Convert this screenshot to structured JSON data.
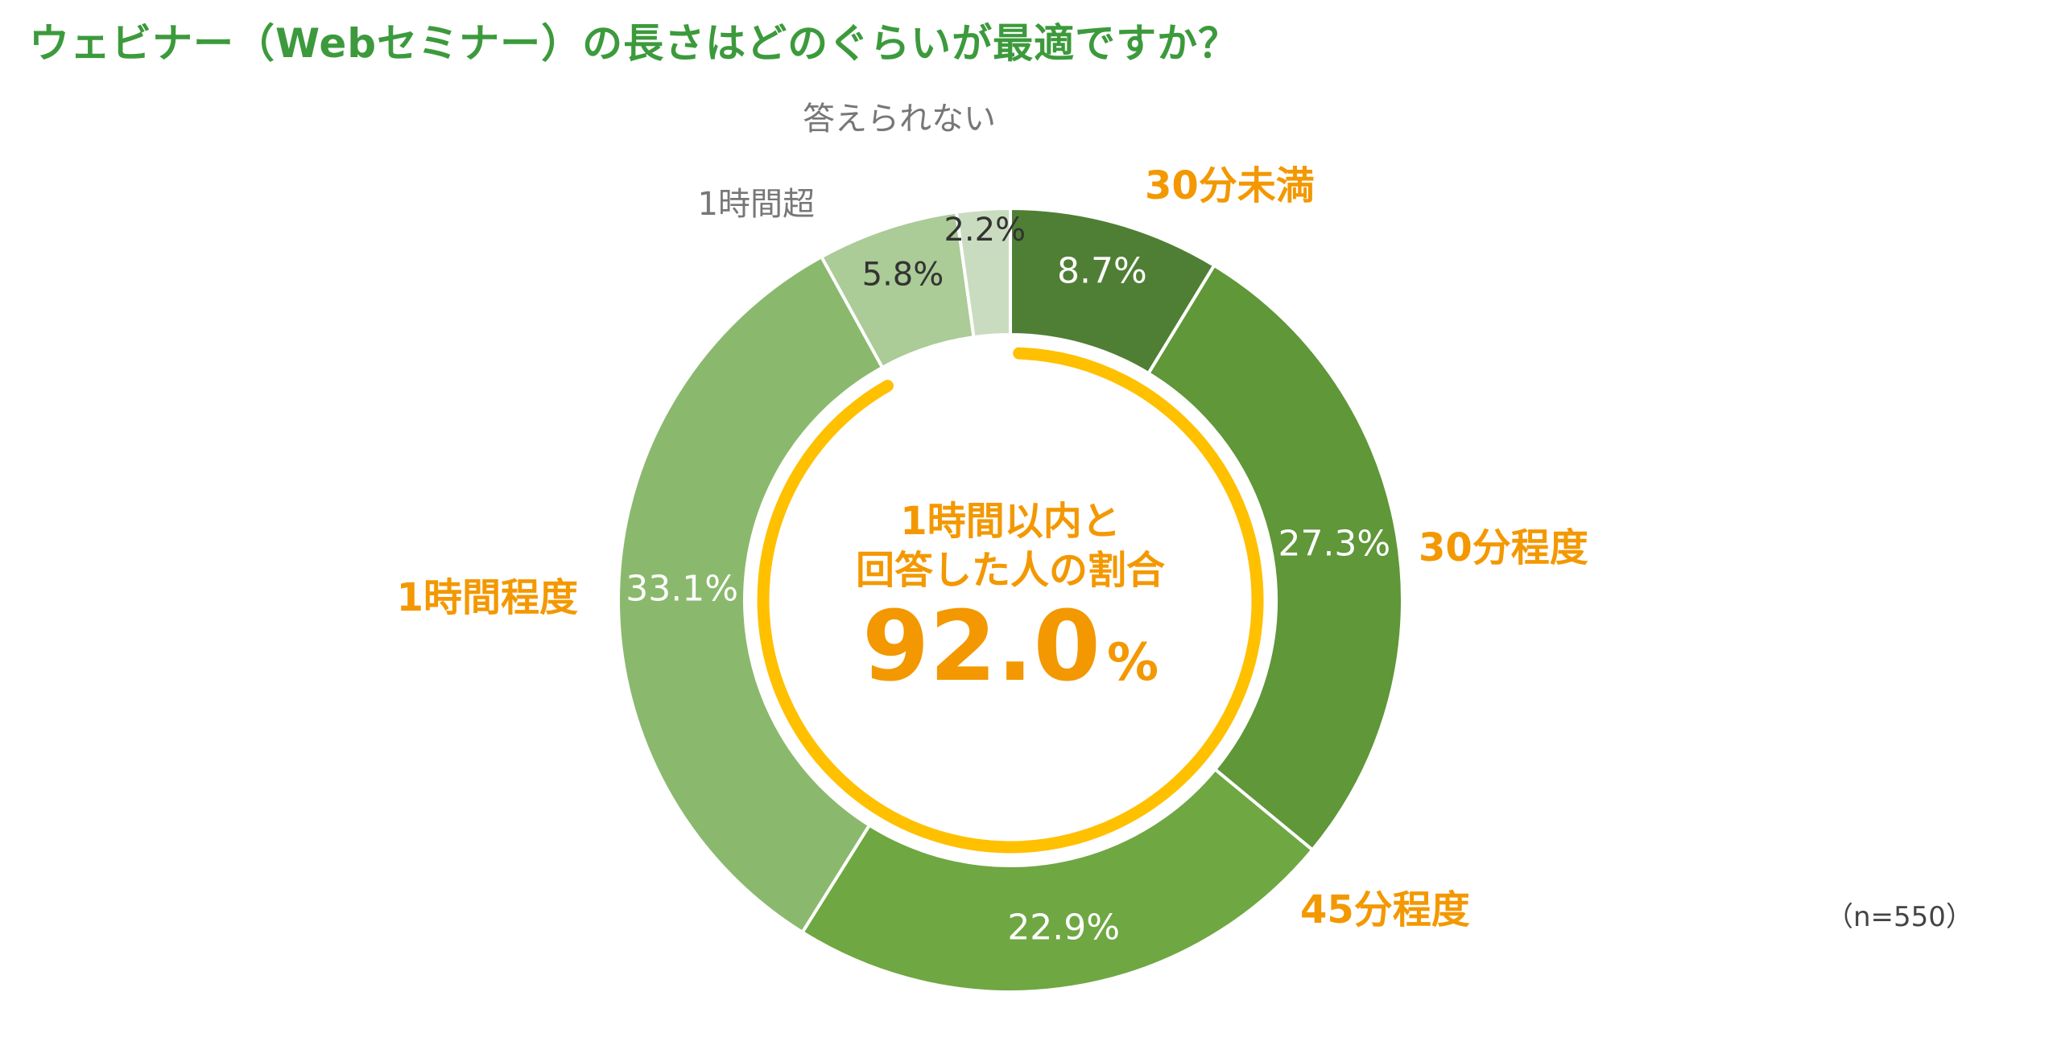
{
  "title": "ウェビナー（Webセミナー）の長さはどのぐらいが最適ですか？",
  "sample_note": "（n=550）",
  "center": {
    "line1": "1時間以内と",
    "line2": "回答した人の割合",
    "value": "92.0",
    "unit": "%"
  },
  "colors": {
    "title": "#3c9a3c",
    "highlight": "#f39800",
    "ring": "#ffc000",
    "gray_label": "#777777"
  },
  "chart_data": {
    "type": "pie",
    "variant": "donut",
    "title": "ウェビナー（Webセミナー）の長さはどのぐらいが最適ですか？",
    "unit": "%",
    "n": 550,
    "categories": [
      "30分未満",
      "30分程度",
      "45分程度",
      "1時間程度",
      "1時間超",
      "答えられない"
    ],
    "values": [
      8.7,
      27.3,
      22.9,
      33.1,
      5.8,
      2.2
    ],
    "value_labels": [
      "8.7%",
      "27.3%",
      "22.9%",
      "33.1%",
      "5.8%",
      "2.2%"
    ],
    "slice_colors": [
      "#4f7f34",
      "#5f9739",
      "#6fa743",
      "#8ab96d",
      "#abcb97",
      "#cadcbf"
    ],
    "label_colors": [
      "#ffffff",
      "#ffffff",
      "#ffffff",
      "#ffffff",
      "#333333",
      "#333333"
    ],
    "category_label_colors": [
      "#f39800",
      "#f39800",
      "#f39800",
      "#f39800",
      "#777777",
      "#777777"
    ],
    "category_label_bold": [
      true,
      true,
      true,
      true,
      false,
      false
    ],
    "start_angle": "12 o'clock, clockwise",
    "highlight_group": {
      "label": "1時間以内と回答した人の割合",
      "categories": [
        "30分未満",
        "30分程度",
        "45分程度",
        "1時間程度"
      ],
      "value": 92.0
    }
  }
}
